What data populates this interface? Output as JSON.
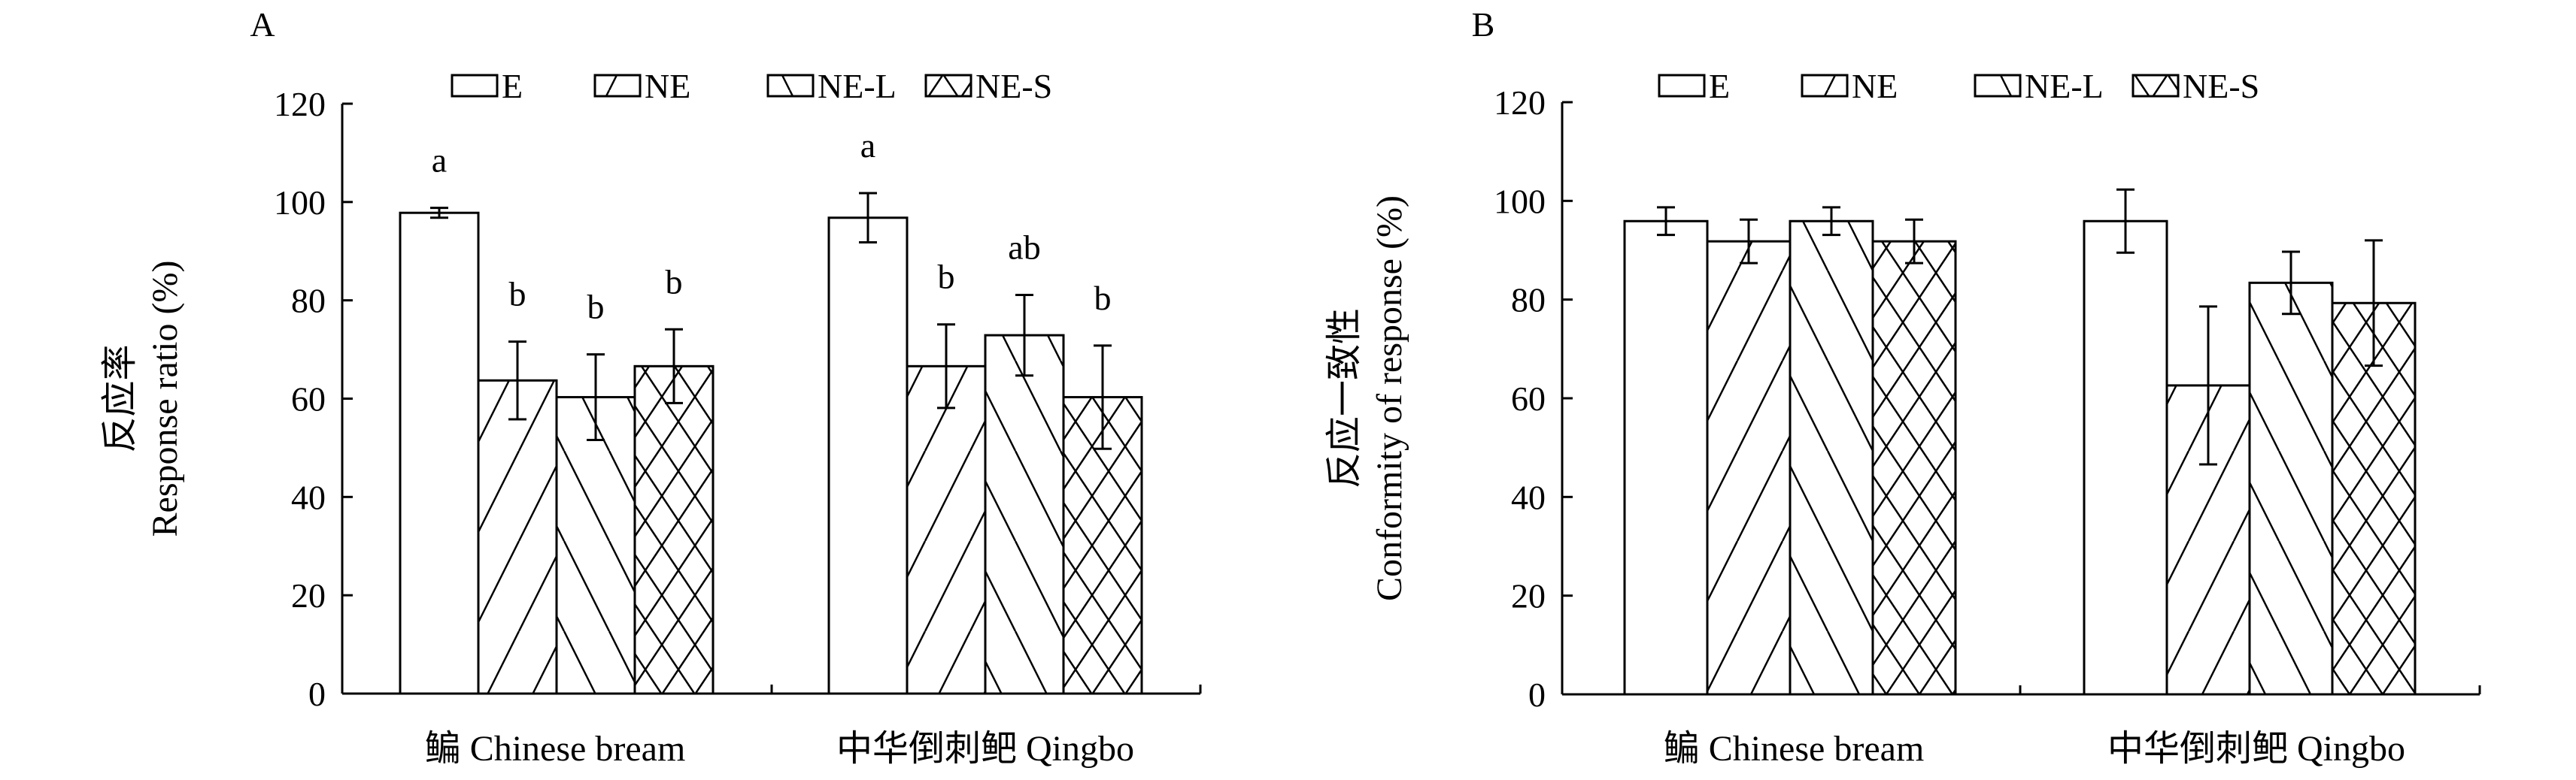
{
  "chart_data": [
    {
      "type": "bar",
      "panel_label": "A",
      "ylabel_cn": "反应率",
      "ylabel": "Response ratio (%)",
      "categories": [
        "鳊 Chinese bream",
        "中华倒刺鲃 Qingbo"
      ],
      "ylim": [
        0,
        120
      ],
      "yticks": [
        0,
        20,
        40,
        60,
        80,
        100,
        120
      ],
      "legend": [
        "E",
        "NE",
        "NE-L",
        "NE-S"
      ],
      "legend_position": "top",
      "series": [
        {
          "name": "E",
          "pattern": "none",
          "values": [
            97.8,
            96.8
          ],
          "errors": [
            1.0,
            5.0
          ],
          "letters": [
            "a",
            "a"
          ]
        },
        {
          "name": "NE",
          "pattern": "forward",
          "values": [
            63.7,
            66.6
          ],
          "errors": [
            7.9,
            8.5
          ],
          "letters": [
            "b",
            "b"
          ]
        },
        {
          "name": "NE-L",
          "pattern": "backward",
          "values": [
            60.3,
            72.9
          ],
          "errors": [
            8.7,
            8.2
          ],
          "letters": [
            "b",
            "ab"
          ]
        },
        {
          "name": "NE-S",
          "pattern": "cross",
          "values": [
            66.6,
            60.3
          ],
          "errors": [
            7.5,
            10.5
          ],
          "letters": [
            "b",
            "b"
          ]
        }
      ]
    },
    {
      "type": "bar",
      "panel_label": "B",
      "ylabel_cn": "反应一致性",
      "ylabel": "Conformity of response (%)",
      "categories": [
        "鳊 Chinese bream",
        "中华倒刺鲃 Qingbo"
      ],
      "ylim": [
        0,
        120
      ],
      "yticks": [
        0,
        20,
        40,
        60,
        80,
        100,
        120
      ],
      "legend": [
        "E",
        "NE",
        "NE-L",
        "NE-S"
      ],
      "legend_position": "top",
      "series": [
        {
          "name": "E",
          "pattern": "none",
          "values": [
            95.9,
            95.9
          ],
          "errors": [
            2.8,
            6.4
          ]
        },
        {
          "name": "NE",
          "pattern": "forward",
          "values": [
            91.8,
            62.6
          ],
          "errors": [
            4.4,
            16.0
          ]
        },
        {
          "name": "NE-L",
          "pattern": "backward",
          "values": [
            95.9,
            83.4
          ],
          "errors": [
            2.8,
            6.3
          ]
        },
        {
          "name": "NE-S",
          "pattern": "cross",
          "values": [
            91.8,
            79.3
          ],
          "errors": [
            4.4,
            12.7
          ]
        }
      ]
    }
  ]
}
